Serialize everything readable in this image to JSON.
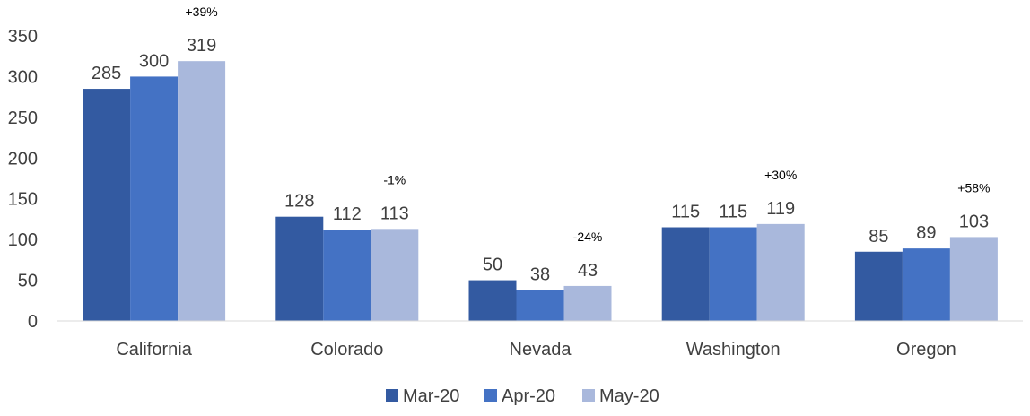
{
  "chart_data": {
    "type": "bar",
    "categories": [
      "California",
      "Colorado",
      "Nevada",
      "Washington",
      "Oregon"
    ],
    "series": [
      {
        "name": "Mar-20",
        "values": [
          285,
          128,
          50,
          115,
          85
        ],
        "color": "#335AA1"
      },
      {
        "name": "Apr-20",
        "values": [
          300,
          112,
          38,
          115,
          89
        ],
        "color": "#4472C4"
      },
      {
        "name": "May-20",
        "values": [
          319,
          113,
          43,
          119,
          103
        ],
        "color": "#A9B8DC"
      }
    ],
    "annotations": [
      "+39%",
      "-1%",
      "-24%",
      "+30%",
      "+58%"
    ],
    "yticks": [
      0,
      50,
      100,
      150,
      200,
      250,
      300,
      350
    ],
    "ylim": [
      0,
      350
    ],
    "grid": false,
    "legend_position": "bottom",
    "title": "",
    "xlabel": "",
    "ylabel": ""
  }
}
